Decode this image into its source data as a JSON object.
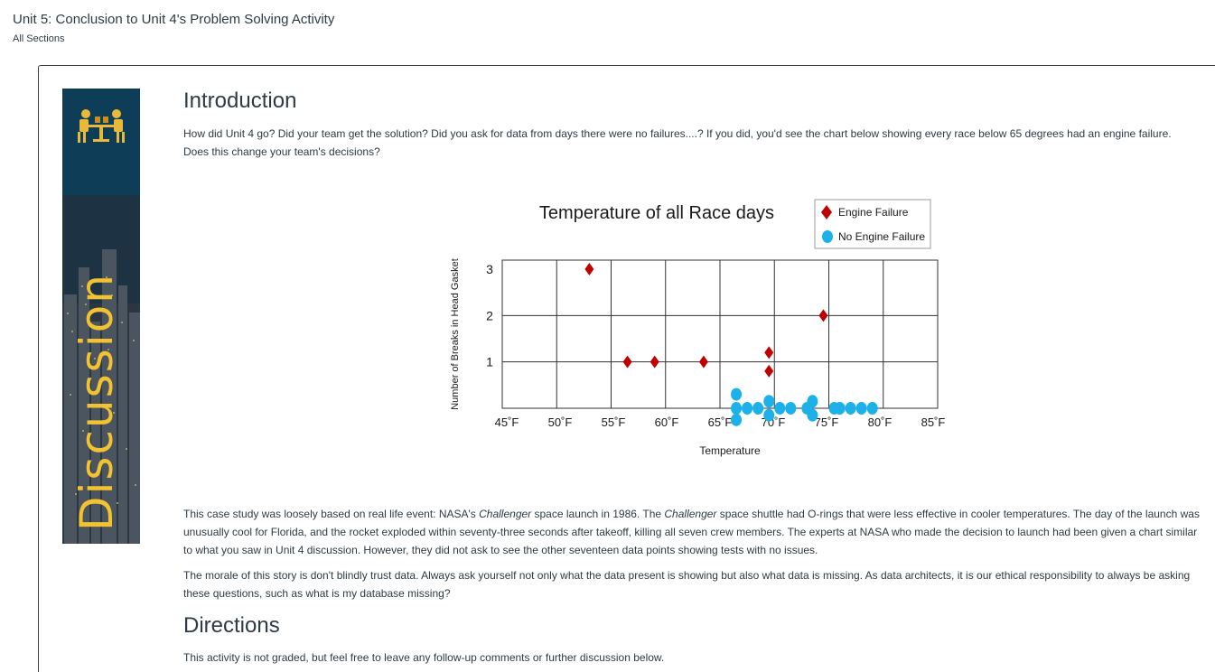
{
  "page": {
    "title": "Unit 5: Conclusion to Unit 4's Problem Solving Activity",
    "subtitle": "All Sections"
  },
  "banner": {
    "word": "Discussion",
    "accent_color": "#f2c230",
    "icon": "meeting-people-icon"
  },
  "intro": {
    "heading": "Introduction",
    "text": "How did Unit 4 go? Did your team get the solution? Did you ask for data from days there were no failures....? If you did, you'd see the chart below showing every race below 65 degrees had an engine failure. Does this change your team's decisions?"
  },
  "chart_data": {
    "type": "scatter",
    "title": "Temperature of all Race days",
    "xlabel": "Temperature",
    "ylabel": "Number of Breaks in Head Gasket",
    "x_tick_labels": [
      "45˚F",
      "50˚F",
      "55˚F",
      "60˚F",
      "65˚F",
      "70˚F",
      "75˚F",
      "80˚F",
      "85˚F"
    ],
    "y_tick_labels": [
      "1",
      "2",
      "3"
    ],
    "xlim": [
      45,
      85
    ],
    "ylim": [
      0,
      3
    ],
    "grid": true,
    "legend_position": "top-right",
    "series": [
      {
        "name": "Engine Failure",
        "marker": "diamond",
        "color": "#c00000",
        "points": [
          [
            53,
            3
          ],
          [
            56.5,
            1
          ],
          [
            59,
            1
          ],
          [
            63.5,
            1
          ],
          [
            69.5,
            1.2
          ],
          [
            69.5,
            0.8
          ],
          [
            74.5,
            2
          ]
        ]
      },
      {
        "name": "No Engine Failure",
        "marker": "circle",
        "color": "#1cb1e8",
        "points": [
          [
            66.5,
            0.3
          ],
          [
            66.5,
            0
          ],
          [
            66.5,
            -0.25
          ],
          [
            67.5,
            0
          ],
          [
            68.5,
            0
          ],
          [
            69.5,
            0.15
          ],
          [
            69.5,
            -0.15
          ],
          [
            70.5,
            0
          ],
          [
            71.5,
            0
          ],
          [
            73,
            0
          ],
          [
            73.5,
            0.15
          ],
          [
            73.5,
            -0.15
          ],
          [
            75.5,
            0
          ],
          [
            76,
            0
          ],
          [
            76,
            0
          ],
          [
            77,
            0
          ],
          [
            78,
            0
          ],
          [
            79,
            0
          ]
        ]
      }
    ]
  },
  "body": {
    "paragraph1_parts": [
      "This case study was loosely based on real life event: NASA's ",
      "Challenger",
      " space launch in 1986. The ",
      "Challenger",
      " space shuttle had O-rings that were less effective in cooler temperatures. The day of the launch was unusually cool for Florida, and the rocket exploded within seventy-three seconds after takeoff, killing all seven crew members. The experts at NASA who made the decision to launch had been given a chart similar to what you saw in Unit 4 discussion. However, they did not ask to see the other seventeen data points showing tests with no issues."
    ],
    "paragraph2": "The morale of this story is don't blindly trust data. Always ask yourself not only what the data present is showing but also what data is missing. As data architects, it is our ethical responsibility to always be asking these questions, such as what is my database missing?"
  },
  "directions": {
    "heading": "Directions",
    "text": "This activity is not graded, but feel free to leave any follow-up comments or further discussion below."
  }
}
